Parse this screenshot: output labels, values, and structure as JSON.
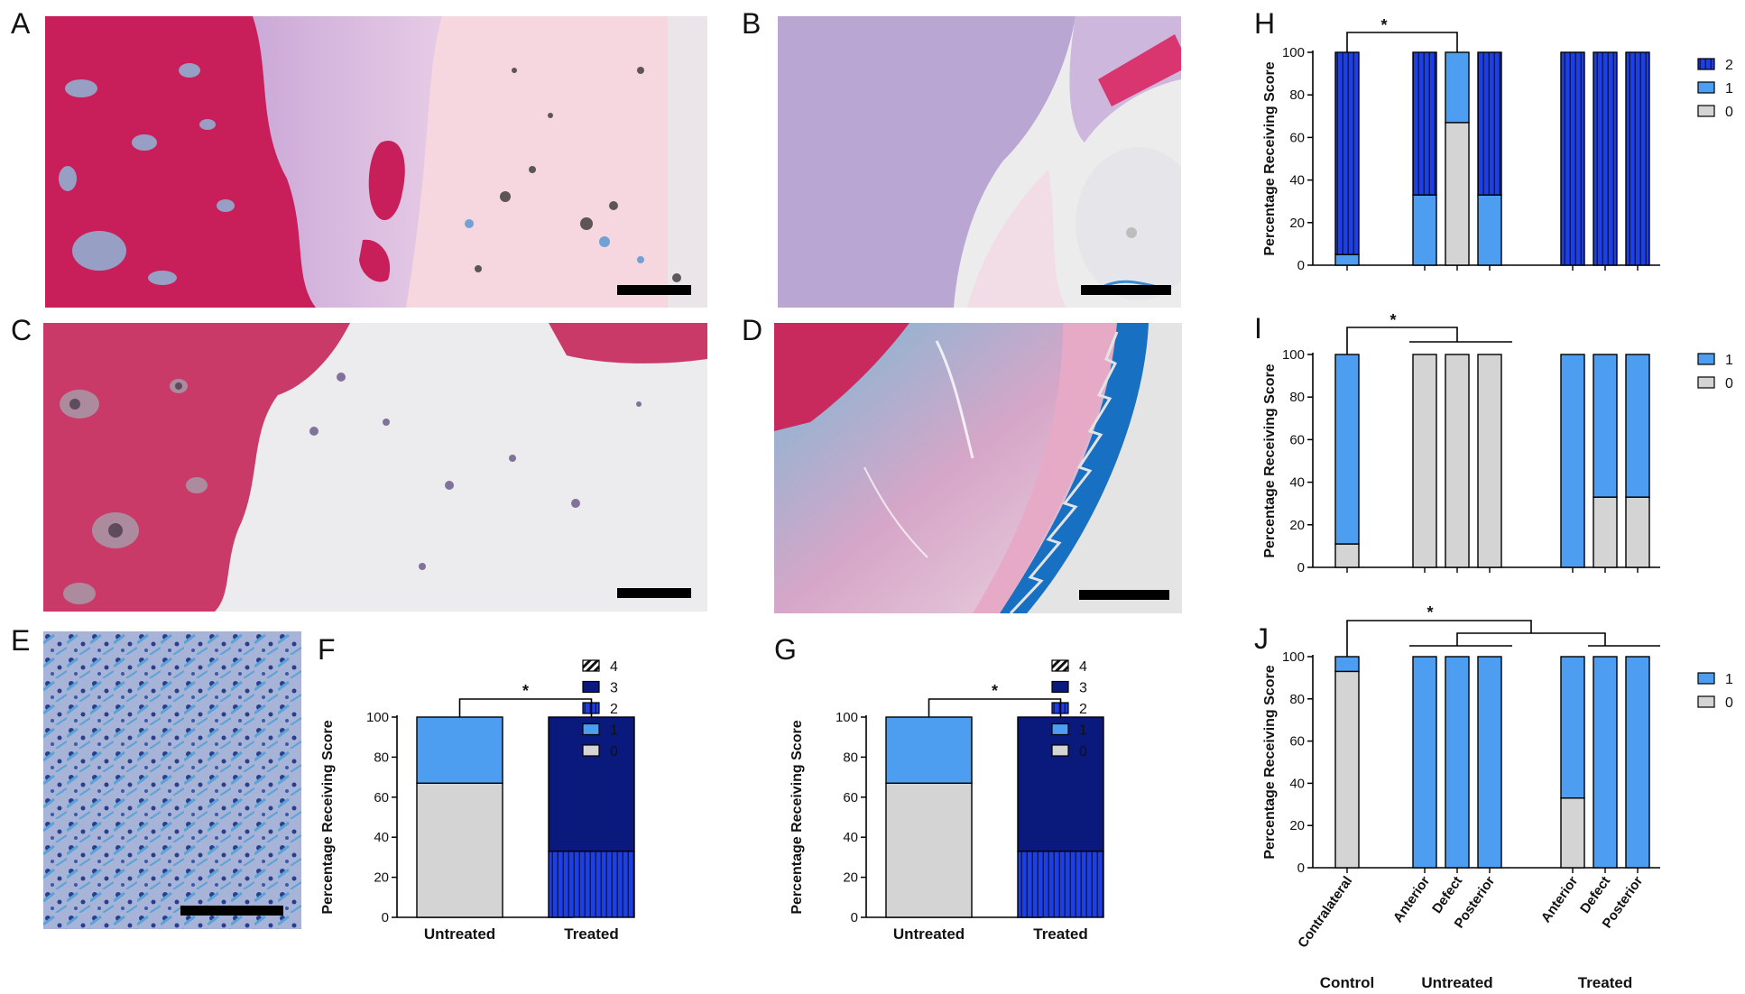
{
  "panel_letters": [
    "A",
    "B",
    "C",
    "D",
    "E",
    "F",
    "G",
    "H",
    "I",
    "J"
  ],
  "colors": {
    "score0": "#d4d4d4",
    "score1": "#4d9ef0",
    "score2": "#1f3fe6",
    "score3": "#0a1a7c",
    "bone_pink": "#c81e5a",
    "stain_purple": "#b9a6d3",
    "stain_blue": "#2f8fd0"
  },
  "chart_data": [
    {
      "id": "F",
      "type": "bar",
      "stacked": true,
      "categories": [
        "Untreated",
        "Treated"
      ],
      "series": [
        {
          "name": "0",
          "values": [
            67,
            0
          ]
        },
        {
          "name": "1",
          "values": [
            33,
            0
          ]
        },
        {
          "name": "2",
          "values": [
            0,
            33
          ]
        },
        {
          "name": "3",
          "values": [
            0,
            67
          ]
        },
        {
          "name": "4",
          "values": [
            0,
            0
          ]
        }
      ],
      "legend": [
        "4",
        "3",
        "2",
        "1",
        "0"
      ],
      "ylabel": "Percentage Receiving Score",
      "ylim": [
        0,
        100
      ],
      "yticks": [
        "0",
        "20",
        "40",
        "60",
        "80",
        "100"
      ],
      "significance": "*",
      "grid": false,
      "legend_position": "right"
    },
    {
      "id": "G",
      "type": "bar",
      "stacked": true,
      "categories": [
        "Untreated",
        "Treated"
      ],
      "series": [
        {
          "name": "0",
          "values": [
            67,
            0
          ]
        },
        {
          "name": "1",
          "values": [
            33,
            0
          ]
        },
        {
          "name": "2",
          "values": [
            0,
            33
          ]
        },
        {
          "name": "3",
          "values": [
            0,
            67
          ]
        },
        {
          "name": "4",
          "values": [
            0,
            0
          ]
        }
      ],
      "legend": [
        "4",
        "3",
        "2",
        "1",
        "0"
      ],
      "ylabel": "Percentage Receiving Score",
      "ylim": [
        0,
        100
      ],
      "yticks": [
        "0",
        "20",
        "40",
        "60",
        "80",
        "100"
      ],
      "significance": "*",
      "grid": false,
      "legend_position": "right"
    },
    {
      "id": "H",
      "type": "bar",
      "stacked": true,
      "bars": 7,
      "series": [
        {
          "name": "0",
          "values": [
            0,
            0,
            67,
            0,
            0,
            0,
            0
          ]
        },
        {
          "name": "1",
          "values": [
            5,
            33,
            33,
            33,
            0,
            0,
            0
          ]
        },
        {
          "name": "2",
          "values": [
            95,
            67,
            0,
            67,
            100,
            100,
            100
          ]
        }
      ],
      "legend": [
        "2",
        "1",
        "0"
      ],
      "ylabel": "Percentage Receiving Score",
      "ylim": [
        0,
        100
      ],
      "yticks": [
        "0",
        "20",
        "40",
        "60",
        "80",
        "100"
      ],
      "significance": "*",
      "grid": false,
      "legend_position": "right"
    },
    {
      "id": "I",
      "type": "bar",
      "stacked": true,
      "bars": 7,
      "series": [
        {
          "name": "0",
          "values": [
            11,
            100,
            100,
            100,
            0,
            33,
            33
          ]
        },
        {
          "name": "1",
          "values": [
            89,
            0,
            0,
            0,
            100,
            67,
            67
          ]
        }
      ],
      "legend": [
        "1",
        "0"
      ],
      "ylabel": "Percentage Receiving Score",
      "ylim": [
        0,
        100
      ],
      "yticks": [
        "0",
        "20",
        "40",
        "60",
        "80",
        "100"
      ],
      "significance": "*",
      "grid": false,
      "legend_position": "right"
    },
    {
      "id": "J",
      "type": "bar",
      "stacked": true,
      "categories": [
        "Contralateral",
        "Anterior",
        "Defect",
        "Posterior",
        "Anterior",
        "Defect",
        "Posterior"
      ],
      "groups": [
        "Control",
        "Untreated",
        "Treated"
      ],
      "series": [
        {
          "name": "0",
          "values": [
            93,
            0,
            0,
            0,
            33,
            0,
            0
          ]
        },
        {
          "name": "1",
          "values": [
            7,
            100,
            100,
            100,
            67,
            100,
            100
          ]
        }
      ],
      "legend": [
        "1",
        "0"
      ],
      "ylabel": "Percentage Receiving Score",
      "ylim": [
        0,
        100
      ],
      "yticks": [
        "0",
        "20",
        "40",
        "60",
        "80",
        "100"
      ],
      "significance": "*",
      "grid": false,
      "legend_position": "right"
    }
  ]
}
